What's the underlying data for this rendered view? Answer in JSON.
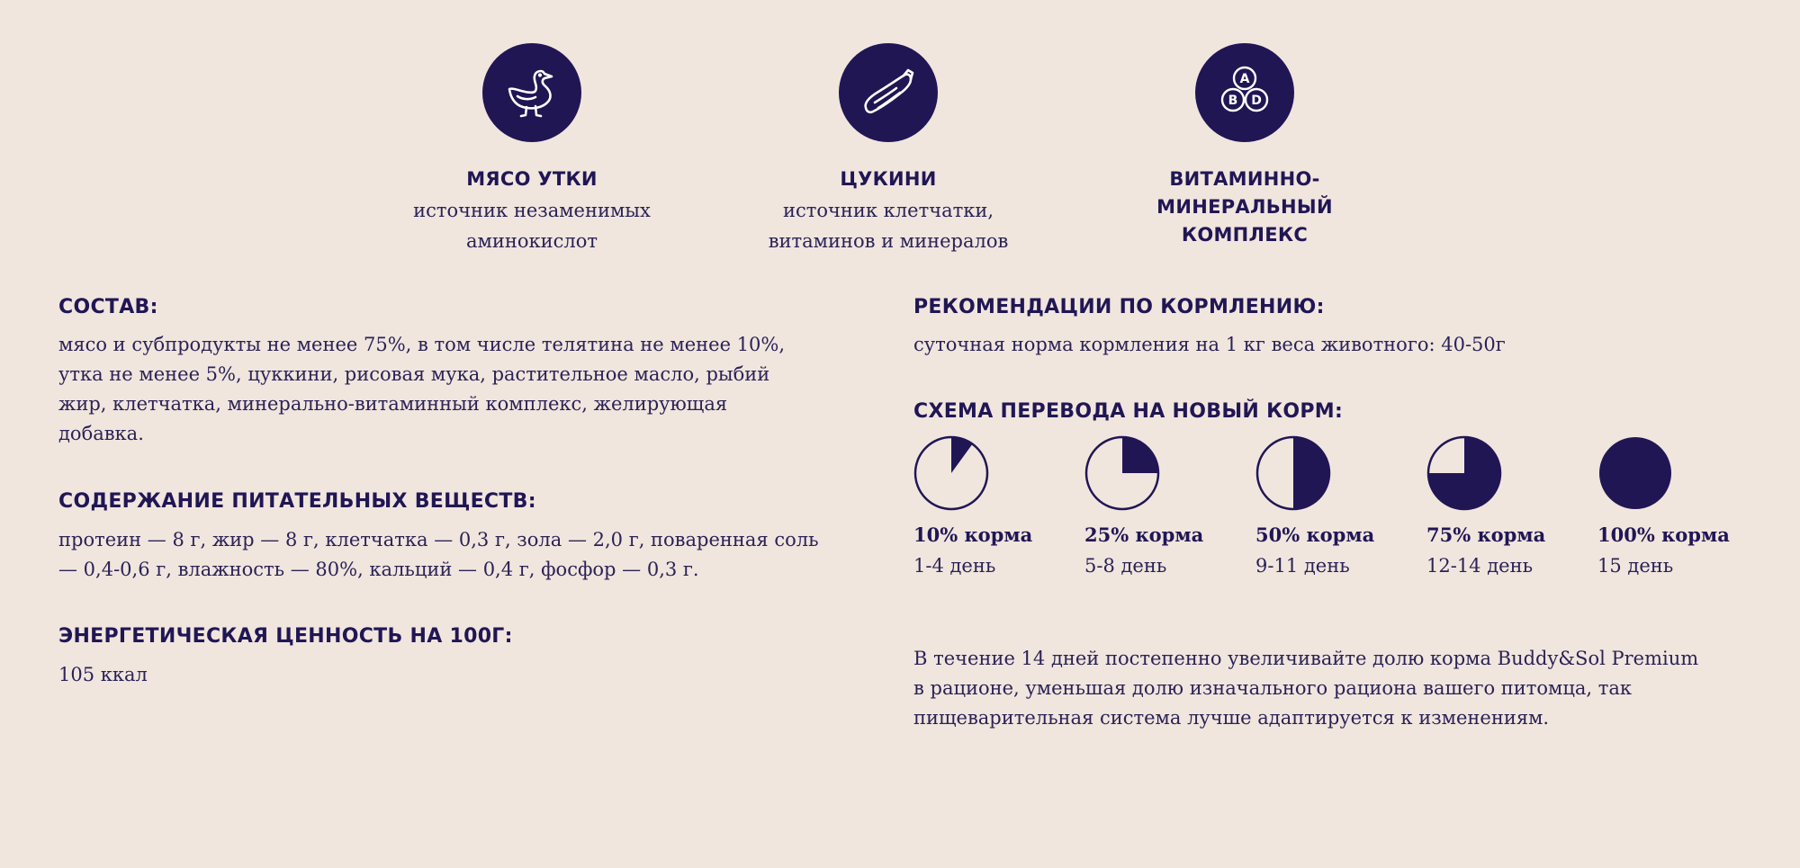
{
  "features": [
    {
      "icon": "duck-icon",
      "title": "МЯСО УТКИ",
      "desc_line1": "источник незаменимых",
      "desc_line2": "аминокислот"
    },
    {
      "icon": "zucchini-icon",
      "title": "ЦУКИНИ",
      "desc_line1": "источник клетчатки,",
      "desc_line2": "витаминов и минералов"
    },
    {
      "icon": "vitamins-icon",
      "title_line1": "ВИТАМИННО-",
      "title_line2": "МИНЕРАЛЬНЫЙ",
      "title_line3": "КОМПЛЕКС",
      "badges": [
        "A",
        "B",
        "D"
      ]
    }
  ],
  "composition": {
    "title": "СОСТАВ:",
    "lines": [
      "мясо и субпродукты не менее 75%, в том числе телятина не менее 10%,",
      "утка не менее 5%, цуккини, рисовая мука, растительное масло, рыбий",
      "жир, клетчатка, минерально-витаминный комплекс, желирующая",
      "добавка."
    ]
  },
  "nutrients": {
    "title": "СОДЕРЖАНИЕ ПИТАТЕЛЬНЫХ ВЕЩЕСТВ:",
    "lines": [
      "протеин — 8 г, жир — 8 г, клетчатка — 0,3 г, зола — 2,0 г, поваренная соль",
      "— 0,4-0,6 г, влажность — 80%, кальций — 0,4 г, фосфор — 0,3 г."
    ]
  },
  "energy": {
    "title": "ЭНЕРГЕТИЧЕСКАЯ ЦЕННОСТЬ НА 100Г:",
    "value": "105 ккал"
  },
  "feeding": {
    "title": "РЕКОМЕНДАЦИИ ПО КОРМЛЕНИЮ:",
    "text": "суточная норма кормления на 1 кг веса животного: 40-50г"
  },
  "transition": {
    "title": "СХЕМА ПЕРЕВОДА НА НОВЫЙ КОРМ:",
    "steps": [
      {
        "fraction": 0.1,
        "percent": "10% корма",
        "days": "1-4 день"
      },
      {
        "fraction": 0.25,
        "percent": "25% корма",
        "days": "5-8 день"
      },
      {
        "fraction": 0.5,
        "percent": "50% корма",
        "days": "9-11 день"
      },
      {
        "fraction": 0.75,
        "percent": "75% корма",
        "days": "12-14 день"
      },
      {
        "fraction": 1.0,
        "percent": "100% корма",
        "days": "15 день"
      }
    ],
    "note_lines": [
      "В течение 14 дней постепенно увеличивайте долю корма Buddy&Sol Premium",
      "в рационе, уменьшая долю изначального рациона вашего питомца, так",
      "пищеварительная система лучше адаптируется к изменениям."
    ]
  },
  "colors": {
    "background": "#f0e6de",
    "accent": "#211654"
  }
}
